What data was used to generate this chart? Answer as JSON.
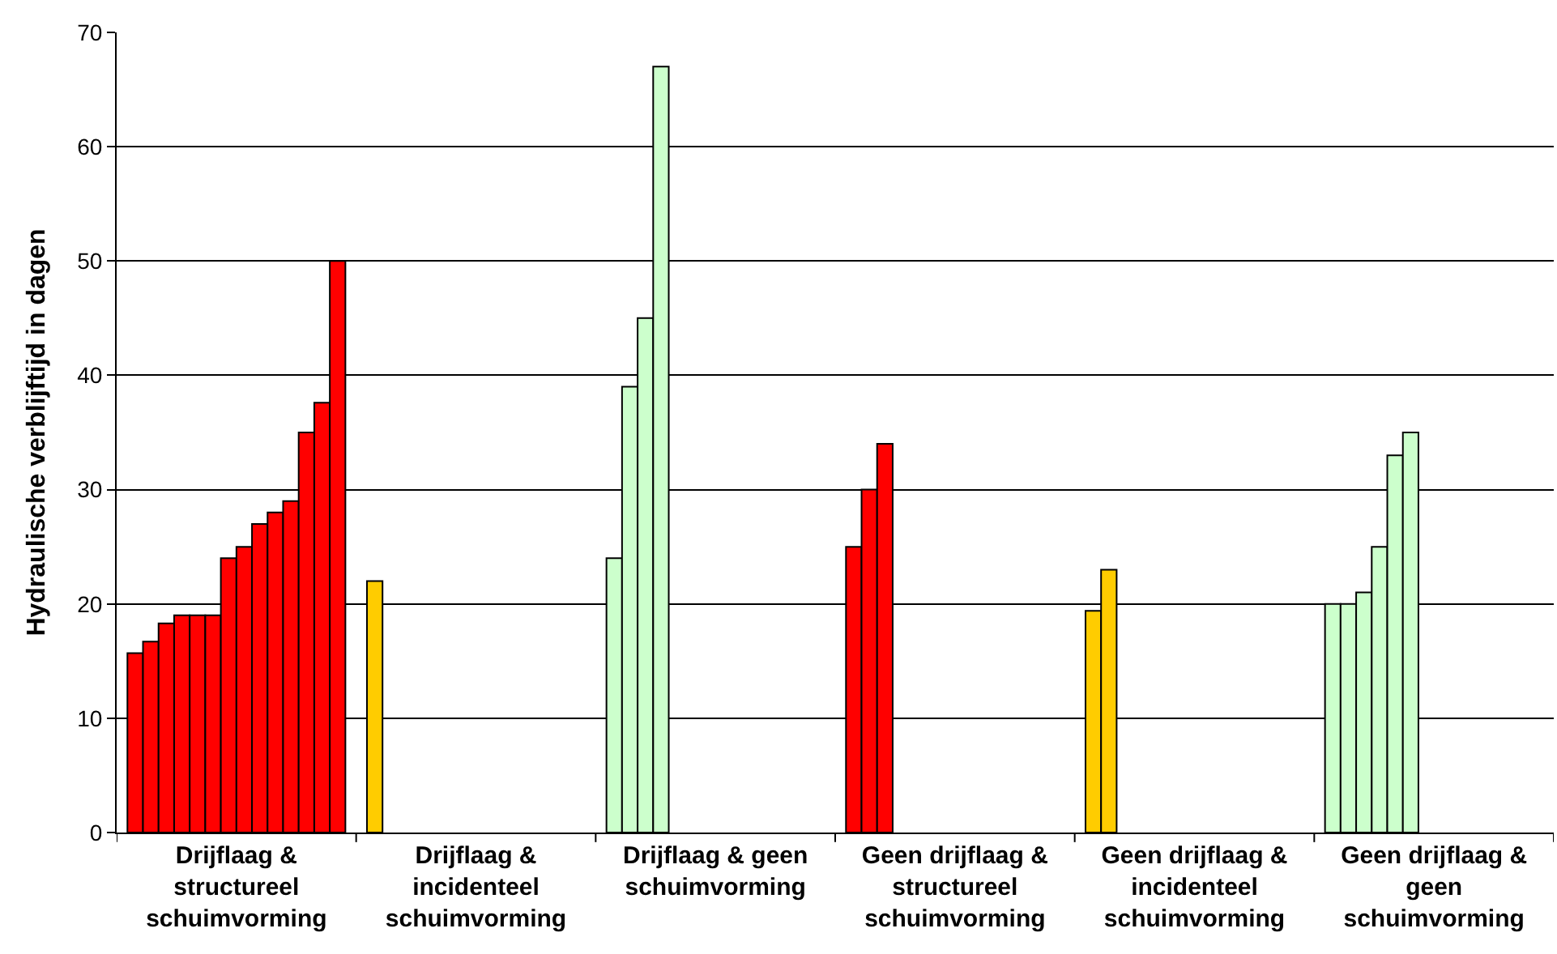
{
  "chart_data": {
    "type": "bar",
    "ylabel": "Hydraulische verblijftijd in dagen",
    "categories": [
      "Drijflaag & structureel schuimvorming",
      "Drijflaag & incidenteel schuimvorming",
      "Drijflaag & geen schuimvorming",
      "Geen drijflaag & structureel schuimvorming",
      "Geen drijflaag & incidenteel schuimvorming",
      "Geen drijflaag & geen schuimvorming"
    ],
    "series": [
      {
        "values": [
          15.7,
          22,
          24,
          25,
          19.4,
          20
        ],
        "colors": [
          "#ff0000",
          "#ffcc00",
          "#ccffcc",
          "#ff0000",
          "#ffcc00",
          "#ccffcc"
        ]
      },
      {
        "values": [
          16.7,
          null,
          39,
          30,
          23,
          20
        ],
        "colors": [
          "#ff0000",
          "#ffcc00",
          "#ccffcc",
          "#ff0000",
          "#ffcc00",
          "#ccffcc"
        ]
      },
      {
        "values": [
          18.3,
          null,
          45,
          34,
          null,
          21
        ],
        "colors": [
          "#ff0000",
          "#ffcc00",
          "#ccffcc",
          "#ff0000",
          "#ffcc00",
          "#ccffcc"
        ]
      },
      {
        "values": [
          19,
          null,
          67,
          null,
          null,
          25
        ],
        "colors": [
          "#ff0000",
          "#ffcc00",
          "#ccffcc",
          "#ff0000",
          "#ffcc00",
          "#ccffcc"
        ]
      },
      {
        "values": [
          19,
          null,
          null,
          null,
          null,
          33
        ],
        "colors": [
          "#ff0000",
          "#ffcc00",
          "#ccffcc",
          "#ff0000",
          "#ffcc00",
          "#ccffcc"
        ]
      },
      {
        "values": [
          19,
          null,
          null,
          null,
          null,
          35
        ],
        "colors": [
          "#ff0000",
          "#ffcc00",
          "#ccffcc",
          "#ff0000",
          "#ffcc00",
          "#ccffcc"
        ]
      },
      {
        "values": [
          24,
          null,
          null,
          null,
          null,
          null
        ],
        "colors": [
          "#ff0000",
          "#ffcc00",
          "#ccffcc",
          "#ff0000",
          "#ffcc00",
          "#ccffcc"
        ]
      },
      {
        "values": [
          25,
          null,
          null,
          null,
          null,
          null
        ],
        "colors": [
          "#ff0000",
          "#ffcc00",
          "#ccffcc",
          "#ff0000",
          "#ffcc00",
          "#ccffcc"
        ]
      },
      {
        "values": [
          27,
          null,
          null,
          null,
          null,
          null
        ],
        "colors": [
          "#ff0000",
          "#ffcc00",
          "#ccffcc",
          "#ff0000",
          "#ffcc00",
          "#ccffcc"
        ]
      },
      {
        "values": [
          28,
          null,
          null,
          null,
          null,
          null
        ],
        "colors": [
          "#ff0000",
          "#ffcc00",
          "#ccffcc",
          "#ff0000",
          "#ffcc00",
          "#ccffcc"
        ]
      },
      {
        "values": [
          29,
          null,
          null,
          null,
          null,
          null
        ],
        "colors": [
          "#ff0000",
          "#ffcc00",
          "#ccffcc",
          "#ff0000",
          "#ffcc00",
          "#ccffcc"
        ]
      },
      {
        "values": [
          35,
          null,
          null,
          null,
          null,
          null
        ],
        "colors": [
          "#ff0000",
          "#ffcc00",
          "#ccffcc",
          "#ff0000",
          "#ffcc00",
          "#ccffcc"
        ]
      },
      {
        "values": [
          37.6,
          null,
          null,
          null,
          null,
          null
        ],
        "colors": [
          "#ff0000",
          "#ffcc00",
          "#ccffcc",
          "#ff0000",
          "#ffcc00",
          "#ccffcc"
        ]
      },
      {
        "values": [
          50,
          null,
          null,
          null,
          null,
          null
        ],
        "colors": [
          "#ff0000",
          "#ffcc00",
          "#ccffcc",
          "#ff0000",
          "#ffcc00",
          "#ccffcc"
        ]
      }
    ],
    "ylim": [
      0,
      70
    ],
    "yticks": [
      0,
      10,
      20,
      30,
      40,
      50,
      60,
      70
    ],
    "grid": "y"
  }
}
